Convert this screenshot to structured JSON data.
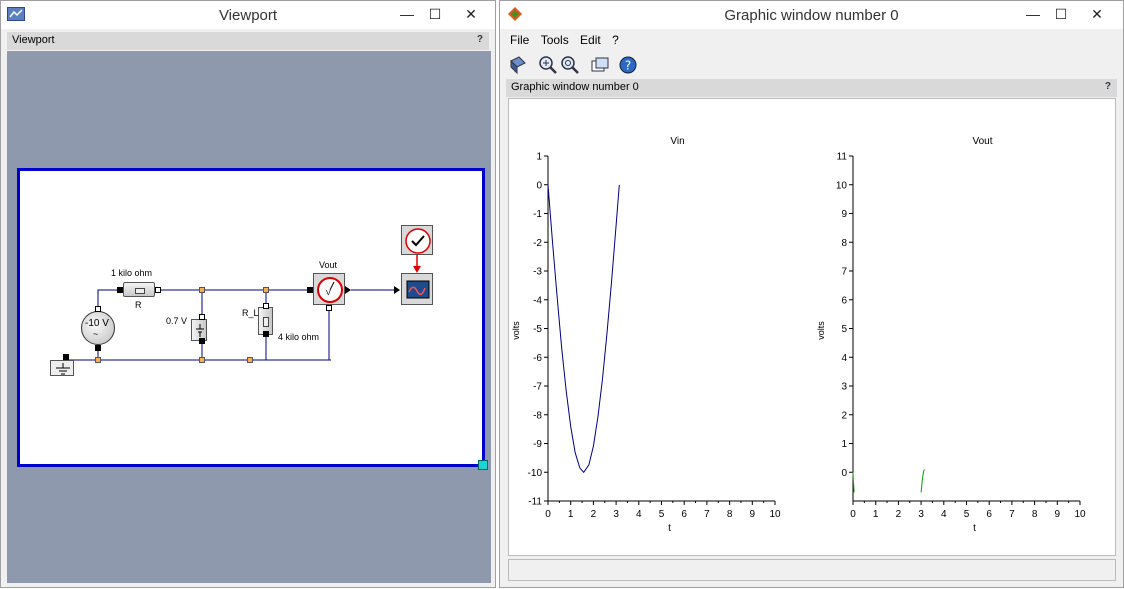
{
  "viewport_window": {
    "title": "Viewport",
    "panel_label": "Viewport",
    "help": "?",
    "buttons": {
      "minimize": "—",
      "maximize": "☐",
      "close": "✕"
    }
  },
  "diagram": {
    "labels": {
      "resistor1_value": "1 kilo ohm",
      "resistor1_name": "R",
      "source_value": "-10 V",
      "source_symbol": "~",
      "diode_voltage": "0.7 V",
      "resistor2_name": "R_L",
      "resistor2_value": "4 kilo ohm",
      "voltmeter_name": "Vout",
      "voltmeter_text": "V"
    }
  },
  "graphic_window": {
    "title": "Graphic window number 0",
    "panel_label": "Graphic window number 0",
    "help": "?",
    "menu": [
      "File",
      "Tools",
      "Edit",
      "?"
    ],
    "buttons": {
      "minimize": "—",
      "maximize": "☐",
      "close": "✕"
    },
    "toolbar_icons": [
      "rotate-icon",
      "zoom-in-icon",
      "zoom-out-icon",
      "datatip-icon",
      "help-icon"
    ]
  },
  "chart_data": [
    {
      "type": "line",
      "title": "Vin",
      "xlabel": "t",
      "ylabel": "volts",
      "xlim": [
        0,
        10
      ],
      "ylim": [
        -11,
        1
      ],
      "xticks": [
        0,
        1,
        2,
        3,
        4,
        5,
        6,
        7,
        8,
        9,
        10
      ],
      "yticks": [
        1,
        0,
        -1,
        -2,
        -3,
        -4,
        -5,
        -6,
        -7,
        -8,
        -9,
        -10,
        -11
      ],
      "color": "#000080",
      "series": [
        {
          "x": [
            0,
            0.2,
            0.4,
            0.6,
            0.8,
            1.0,
            1.2,
            1.4,
            1.5708,
            1.8,
            2.0,
            2.2,
            2.4,
            2.6,
            2.8,
            3.0,
            3.1416
          ],
          "y": [
            0,
            -1.99,
            -3.89,
            -5.65,
            -7.17,
            -8.41,
            -9.32,
            -9.85,
            -10,
            -9.74,
            -9.09,
            -8.08,
            -6.75,
            -5.16,
            -3.35,
            -1.41,
            0
          ]
        }
      ]
    },
    {
      "type": "line",
      "title": "Vout",
      "xlabel": "t",
      "ylabel": "volts",
      "xlim": [
        0,
        10
      ],
      "ylim": [
        -1,
        11
      ],
      "xticks": [
        0,
        1,
        2,
        3,
        4,
        5,
        6,
        7,
        8,
        9,
        10
      ],
      "yticks": [
        11,
        10,
        9,
        8,
        7,
        6,
        5,
        4,
        3,
        2,
        1,
        0
      ],
      "color": "#00a000",
      "series": [
        {
          "x": [
            0,
            0.01,
            0.05
          ],
          "y": [
            0,
            -0.2,
            -0.7
          ]
        },
        {
          "x": [
            3.0,
            3.05,
            3.1,
            3.14
          ],
          "y": [
            -0.7,
            -0.3,
            0,
            0.1
          ]
        }
      ]
    }
  ]
}
